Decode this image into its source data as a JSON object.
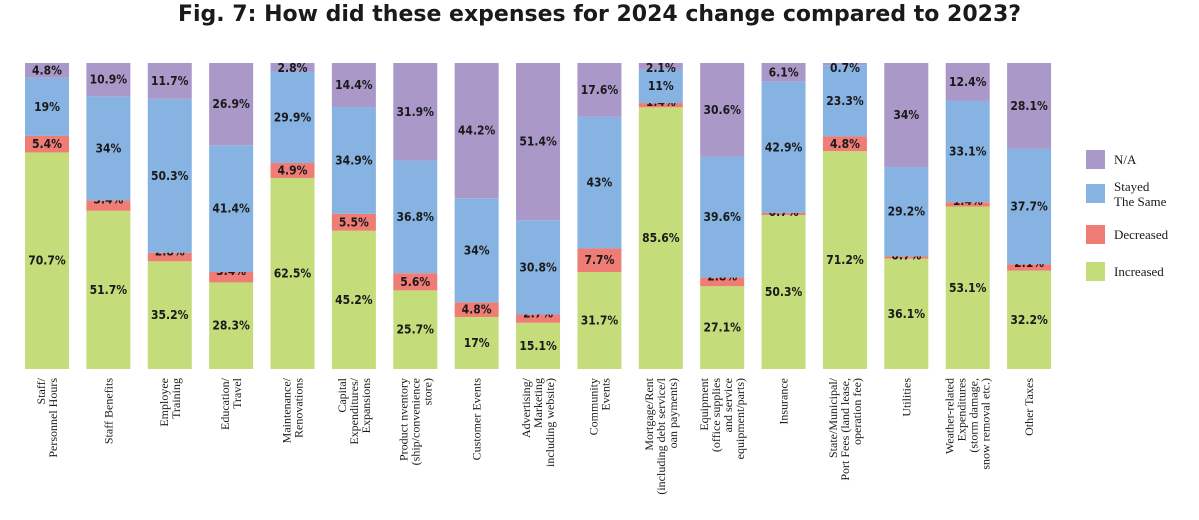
{
  "chart_data": {
    "type": "bar",
    "stacked": true,
    "title": "Fig. 7: How did these expenses for 2024 change compared to 2023?",
    "ylim": [
      0,
      100
    ],
    "grid": false,
    "legend_position": "right",
    "colors": {
      "Increased": "#c5dc7a",
      "Decreased": "#ef7d76",
      "Stayed The Same": "#86b3e2",
      "N/A": "#aa98c9"
    },
    "categories": [
      [
        "Staff/",
        "Personnel Hours"
      ],
      [
        "Staff Benefits"
      ],
      [
        "Employee",
        "Training"
      ],
      [
        "Education/",
        "Travel"
      ],
      [
        "Maintenance/",
        "Renovations"
      ],
      [
        "Capital",
        "Expenditures/",
        "Expansions"
      ],
      [
        "Product nventory",
        "(ship/convenience",
        "store)"
      ],
      [
        "Customer Events"
      ],
      [
        "Advertising/",
        "Marketing",
        "including website)"
      ],
      [
        "Community",
        "Events"
      ],
      [
        "Mortgage/Rent",
        "(including debt service/l",
        "oan payments)"
      ],
      [
        "Equipment",
        "(office supplies",
        "and service",
        "equipment/parts)"
      ],
      [
        "Insurance"
      ],
      [
        "State/Municipal/",
        "Port Fees (land lease,",
        "operation fee)"
      ],
      [
        "Utilities"
      ],
      [
        "Weather-related",
        "Expenditures",
        "(storm damage,",
        "snow removal etc.)"
      ],
      [
        "Other Taxes"
      ]
    ],
    "series": [
      {
        "name": "Increased",
        "values": [
          70.7,
          51.7,
          35.2,
          28.3,
          62.5,
          45.2,
          25.7,
          17,
          15.1,
          31.7,
          85.6,
          27.1,
          50.3,
          71.2,
          36.1,
          53.1,
          32.2
        ],
        "labels": [
          "70.7%",
          "51.7%",
          "35.2%",
          "28.3%",
          "62.5%",
          "45.2%",
          "25.7%",
          "17%",
          "15.1%",
          "31.7%",
          "85.6%",
          "27.1%",
          "50.3%",
          "71.2%",
          "36.1%",
          "53.1%",
          "32.2%"
        ]
      },
      {
        "name": "Decreased",
        "values": [
          5.4,
          3.4,
          2.8,
          3.4,
          4.9,
          5.5,
          5.6,
          4.8,
          2.7,
          7.7,
          1.4,
          2.8,
          0.7,
          4.8,
          0.7,
          1.4,
          2.1
        ],
        "labels": [
          "5.4%",
          "3.4%",
          "2.8%",
          "3.4%",
          "4.9%",
          "5.5%",
          "5.6%",
          "4.8%",
          "2.7%",
          "7.7%",
          "1.4%",
          "2.8%",
          "0.7%",
          "4.8%",
          "0.7%",
          "1.4%",
          "2.1%"
        ]
      },
      {
        "name": "Stayed The Same",
        "values": [
          19,
          34,
          50.3,
          41.4,
          29.9,
          34.9,
          36.8,
          34,
          30.8,
          43,
          11,
          39.6,
          42.9,
          23.3,
          29.2,
          33.1,
          37.7
        ],
        "labels": [
          "19%",
          "34%",
          "50.3%",
          "41.4%",
          "29.9%",
          "34.9%",
          "36.8%",
          "34%",
          "30.8%",
          "43%",
          "11%",
          "39.6%",
          "42.9%",
          "23.3%",
          "29.2%",
          "33.1%",
          "37.7%"
        ]
      },
      {
        "name": "N/A",
        "values": [
          4.8,
          10.9,
          11.7,
          26.9,
          2.8,
          14.4,
          31.9,
          44.2,
          51.4,
          17.6,
          2.1,
          30.6,
          6.1,
          0.7,
          34,
          12.4,
          28.1
        ],
        "labels": [
          "4.8%",
          "10.9%",
          "11.7%",
          "26.9%",
          "2.8%",
          "14.4%",
          "31.9%",
          "44.2%",
          "51.4%",
          "17.6%",
          "2.1%",
          "30.6%",
          "6.1%",
          "0.7%",
          "34%",
          "12.4%",
          "28.1%"
        ]
      }
    ],
    "legend": [
      {
        "series": "N/A",
        "lines": [
          "N/A"
        ]
      },
      {
        "series": "Stayed The Same",
        "lines": [
          "Stayed",
          "The Same"
        ]
      },
      {
        "series": "Decreased",
        "lines": [
          "Decreased"
        ]
      },
      {
        "series": "Increased",
        "lines": [
          "Increased"
        ]
      }
    ]
  }
}
